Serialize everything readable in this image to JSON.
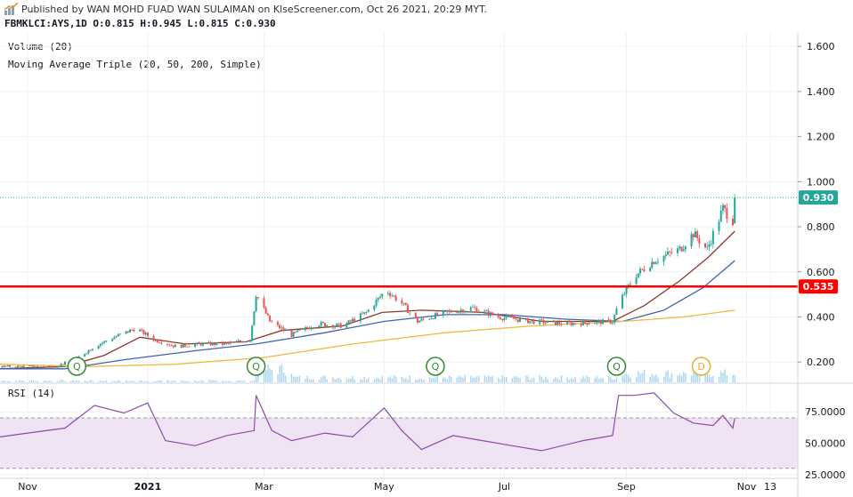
{
  "header": {
    "published": "Published by WAN MOHD FUAD WAN SULAIMAN on KlseScreener.com, Oct 26 2021, 20:29 MYT.",
    "symbol_line": "FBMKLCI:AYS,1D  O:0.815 H:0.945 L:0.815 C:0.930",
    "icon": "klsescreener-logo-icon"
  },
  "indicators": {
    "volume_label": "Volume (20)",
    "ma_label": "Moving Average Triple (20, 50, 200, Simple)",
    "rsi_label": "RSI (14)"
  },
  "colors": {
    "up": "#26a69a",
    "down": "#ef5350",
    "ma20": "#8b3a2a",
    "ma50": "#3f63b0",
    "ma200": "#f0b93b",
    "volume": "#a6d4f2",
    "support": "#ff0000",
    "last_price_bg": "#26a69a",
    "rsi_line": "#8e4aa8",
    "rsi_band": "#efe3f4",
    "quarter_marker": "#2e8b2e",
    "dividend_marker": "#e0b030"
  },
  "chart_data": [
    {
      "type": "candlestick",
      "title": "",
      "xlabel": "",
      "ylabel": "",
      "ylim": [
        0.11,
        1.66
      ],
      "yticks": [
        0.2,
        0.4,
        0.6,
        0.8,
        1.0,
        1.2,
        1.4,
        1.6
      ],
      "ytick_labels": [
        "0.200",
        "0.400",
        "0.600",
        "0.800",
        "1.000",
        "1.200",
        "1.400",
        "1.600"
      ],
      "xticks": [
        {
          "date": "2020-11-01",
          "label": "Nov"
        },
        {
          "date": "2021-01-01",
          "label": "2021"
        },
        {
          "date": "2021-03-01",
          "label": "Mar"
        },
        {
          "date": "2021-05-01",
          "label": "May"
        },
        {
          "date": "2021-07-01",
          "label": "Jul"
        },
        {
          "date": "2021-09-01",
          "label": "Sep"
        },
        {
          "date": "2021-11-01",
          "label": "Nov"
        },
        {
          "date": "2021-11-13",
          "label": "13"
        }
      ],
      "xlim": [
        "2020-10-18",
        "2021-11-27"
      ],
      "last_ohlc": {
        "open": 0.815,
        "high": 0.945,
        "low": 0.815,
        "close": 0.93
      },
      "last_price_label": "0.930",
      "support_level": 0.535,
      "support_label": "0.535",
      "close_series": [
        {
          "date": "2020-10-18",
          "close": 0.18
        },
        {
          "date": "2020-11-15",
          "close": 0.18
        },
        {
          "date": "2020-11-25",
          "close": 0.21
        },
        {
          "date": "2020-12-05",
          "close": 0.27
        },
        {
          "date": "2020-12-15",
          "close": 0.31
        },
        {
          "date": "2020-12-26",
          "close": 0.35
        },
        {
          "date": "2021-01-04",
          "close": 0.3
        },
        {
          "date": "2021-01-15",
          "close": 0.27
        },
        {
          "date": "2021-01-28",
          "close": 0.28
        },
        {
          "date": "2021-02-10",
          "close": 0.28
        },
        {
          "date": "2021-02-22",
          "close": 0.3
        },
        {
          "date": "2021-02-25",
          "close": 0.5
        },
        {
          "date": "2021-03-04",
          "close": 0.38
        },
        {
          "date": "2021-03-15",
          "close": 0.32
        },
        {
          "date": "2021-03-28",
          "close": 0.37
        },
        {
          "date": "2021-04-10",
          "close": 0.36
        },
        {
          "date": "2021-04-22",
          "close": 0.42
        },
        {
          "date": "2021-05-02",
          "close": 0.52
        },
        {
          "date": "2021-05-10",
          "close": 0.46
        },
        {
          "date": "2021-05-18",
          "close": 0.38
        },
        {
          "date": "2021-06-01",
          "close": 0.42
        },
        {
          "date": "2021-06-15",
          "close": 0.44
        },
        {
          "date": "2021-06-28",
          "close": 0.4
        },
        {
          "date": "2021-07-15",
          "close": 0.38
        },
        {
          "date": "2021-08-01",
          "close": 0.37
        },
        {
          "date": "2021-08-25",
          "close": 0.38
        },
        {
          "date": "2021-08-28",
          "close": 0.46
        },
        {
          "date": "2021-09-05",
          "close": 0.58
        },
        {
          "date": "2021-09-15",
          "close": 0.65
        },
        {
          "date": "2021-09-28",
          "close": 0.7
        },
        {
          "date": "2021-10-05",
          "close": 0.77
        },
        {
          "date": "2021-10-12",
          "close": 0.7
        },
        {
          "date": "2021-10-20",
          "close": 0.88
        },
        {
          "date": "2021-10-25",
          "close": 0.83
        },
        {
          "date": "2021-10-26",
          "close": 0.93
        }
      ],
      "series": [
        {
          "name": "MA 20",
          "color": "#8b3a2a",
          "points": [
            [
              "2020-10-18",
              0.17
            ],
            [
              "2020-11-20",
              0.18
            ],
            [
              "2020-12-10",
              0.23
            ],
            [
              "2020-12-28",
              0.31
            ],
            [
              "2021-01-20",
              0.28
            ],
            [
              "2021-02-20",
              0.29
            ],
            [
              "2021-03-10",
              0.34
            ],
            [
              "2021-04-10",
              0.36
            ],
            [
              "2021-04-30",
              0.42
            ],
            [
              "2021-05-20",
              0.43
            ],
            [
              "2021-06-20",
              0.42
            ],
            [
              "2021-07-20",
              0.38
            ],
            [
              "2021-08-25",
              0.38
            ],
            [
              "2021-09-10",
              0.45
            ],
            [
              "2021-09-28",
              0.56
            ],
            [
              "2021-10-12",
              0.66
            ],
            [
              "2021-10-26",
              0.78
            ]
          ]
        },
        {
          "name": "MA 50",
          "color": "#3f63b0",
          "points": [
            [
              "2020-10-18",
              0.17
            ],
            [
              "2020-11-20",
              0.17
            ],
            [
              "2020-12-20",
              0.21
            ],
            [
              "2021-01-25",
              0.25
            ],
            [
              "2021-02-25",
              0.28
            ],
            [
              "2021-04-01",
              0.33
            ],
            [
              "2021-05-01",
              0.38
            ],
            [
              "2021-06-01",
              0.41
            ],
            [
              "2021-07-01",
              0.41
            ],
            [
              "2021-08-01",
              0.39
            ],
            [
              "2021-08-30",
              0.38
            ],
            [
              "2021-09-20",
              0.43
            ],
            [
              "2021-10-10",
              0.53
            ],
            [
              "2021-10-26",
              0.65
            ]
          ]
        },
        {
          "name": "MA 200",
          "color": "#f0b93b",
          "points": [
            [
              "2020-10-18",
              0.19
            ],
            [
              "2020-12-01",
              0.18
            ],
            [
              "2021-01-15",
              0.19
            ],
            [
              "2021-03-01",
              0.22
            ],
            [
              "2021-04-15",
              0.28
            ],
            [
              "2021-06-01",
              0.33
            ],
            [
              "2021-07-15",
              0.36
            ],
            [
              "2021-08-30",
              0.38
            ],
            [
              "2021-09-30",
              0.4
            ],
            [
              "2021-10-26",
              0.43
            ]
          ]
        }
      ],
      "volume": [
        {
          "from": "2020-10-18",
          "to": "2021-02-24",
          "level": 0.1
        },
        {
          "from": "2021-02-25",
          "to": "2021-03-15",
          "level": 0.8
        },
        {
          "from": "2021-03-16",
          "to": "2021-08-27",
          "level": 0.3
        },
        {
          "from": "2021-08-28",
          "to": "2021-10-26",
          "level": 0.55
        }
      ],
      "events": [
        {
          "date": "2020-11-26",
          "label": "Q",
          "kind": "quarterly"
        },
        {
          "date": "2021-02-25",
          "label": "Q",
          "kind": "quarterly"
        },
        {
          "date": "2021-05-27",
          "label": "Q",
          "kind": "quarterly"
        },
        {
          "date": "2021-08-27",
          "label": "Q",
          "kind": "quarterly"
        },
        {
          "date": "2021-10-09",
          "label": "D",
          "kind": "dividend"
        }
      ]
    },
    {
      "type": "line",
      "title": "",
      "name": "RSI (14)",
      "ylim": [
        22,
        97
      ],
      "yticks": [
        25,
        50,
        75
      ],
      "ytick_labels": [
        "25.0000",
        "50.0000",
        "75.0000"
      ],
      "band": [
        30,
        70
      ],
      "points": [
        [
          "2020-10-18",
          55
        ],
        [
          "2020-11-01",
          58
        ],
        [
          "2020-11-20",
          62
        ],
        [
          "2020-12-05",
          80
        ],
        [
          "2020-12-20",
          74
        ],
        [
          "2021-01-01",
          82
        ],
        [
          "2021-01-10",
          52
        ],
        [
          "2021-01-25",
          48
        ],
        [
          "2021-02-10",
          56
        ],
        [
          "2021-02-24",
          60
        ],
        [
          "2021-02-25",
          88
        ],
        [
          "2021-03-05",
          60
        ],
        [
          "2021-03-15",
          52
        ],
        [
          "2021-04-01",
          58
        ],
        [
          "2021-04-15",
          55
        ],
        [
          "2021-05-01",
          78
        ],
        [
          "2021-05-10",
          60
        ],
        [
          "2021-05-20",
          45
        ],
        [
          "2021-06-05",
          56
        ],
        [
          "2021-06-20",
          52
        ],
        [
          "2021-07-05",
          48
        ],
        [
          "2021-07-20",
          44
        ],
        [
          "2021-08-10",
          52
        ],
        [
          "2021-08-25",
          56
        ],
        [
          "2021-08-28",
          88
        ],
        [
          "2021-09-05",
          88
        ],
        [
          "2021-09-15",
          90
        ],
        [
          "2021-09-25",
          74
        ],
        [
          "2021-10-05",
          66
        ],
        [
          "2021-10-15",
          64
        ],
        [
          "2021-10-20",
          72
        ],
        [
          "2021-10-25",
          62
        ],
        [
          "2021-10-26",
          70
        ]
      ]
    }
  ]
}
